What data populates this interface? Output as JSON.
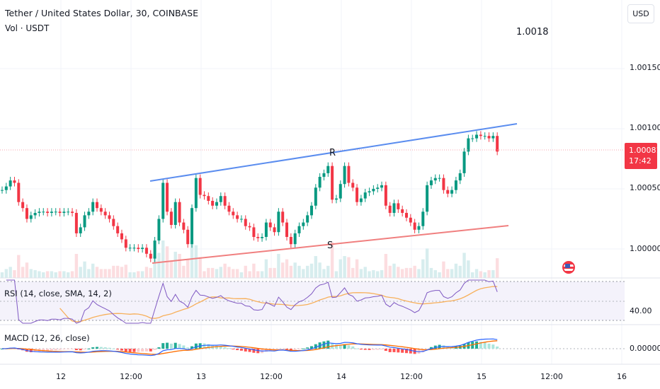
{
  "header": {
    "symbol_title": "Tether / United States Dollar, 30, COINBASE",
    "volume_legend": "Vol · USDT",
    "currency_button": "USD",
    "floating_value": "1.0018"
  },
  "price_axis": {
    "labels": [
      "1.00150",
      "1.00100",
      "1.00050",
      "1.00000"
    ],
    "current_price": "1.00081",
    "countdown": "17:42"
  },
  "indicators": {
    "rsi_legend": "RSI (14, close, SMA, 14, 2)",
    "rsi_axis_label": "40.00",
    "macd_legend": "MACD (12, 26, close)",
    "macd_axis_label": "0.00000"
  },
  "drawings": {
    "resistance_label": "R",
    "support_label": "S",
    "resistance_color": "#5b8def",
    "support_color": "#f07f7f"
  },
  "time_axis": {
    "labels": [
      "12",
      "12:00",
      "13",
      "12:00",
      "14",
      "12:00",
      "15",
      "12:00",
      "16"
    ]
  },
  "colors": {
    "up": "#089981",
    "down": "#f23645",
    "rsi": "#7e57c2",
    "rsi_sma": "#f7b05b",
    "macd": "#2962ff",
    "signal": "#ff6d00"
  },
  "chart_data": {
    "type": "candlestick",
    "title": "Tether / United States Dollar, 30, COINBASE",
    "interval": "30",
    "ylim": [
      0.9999,
      1.0019
    ],
    "y_ticks": [
      1.0,
      1.0005,
      1.001,
      1.0015
    ],
    "x_ticks": [
      "12",
      "12:00",
      "13",
      "12:00",
      "14",
      "12:00",
      "15",
      "12:00",
      "16"
    ],
    "grid": true,
    "closes": [
      1.00049,
      1.00052,
      1.00057,
      1.00055,
      1.00039,
      1.00034,
      1.00025,
      1.00028,
      1.0003,
      1.00031,
      1.00031,
      1.0003,
      1.00031,
      1.00031,
      1.0003,
      1.00031,
      1.00031,
      1.0003,
      1.00013,
      1.00018,
      1.00028,
      1.00031,
      1.00039,
      1.00034,
      1.00031,
      1.00028,
      1.00025,
      1.00019,
      1.00013,
      1.00008,
      1.00001,
      1.00001,
      1.00001,
      1.0,
      1.00001,
      0.99996,
      0.99992,
      1.00007,
      1.00025,
      1.00055,
      1.00031,
      1.0002,
      1.00039,
      1.00022,
      1.00016,
      1.00004,
      1.00034,
      1.00059,
      1.00045,
      1.00044,
      1.0004,
      1.00036,
      1.00039,
      1.00044,
      1.00036,
      1.00031,
      1.00028,
      1.00025,
      1.00025,
      1.00019,
      1.00018,
      1.0001,
      1.00009,
      1.0001,
      1.00022,
      1.00018,
      1.00014,
      1.00031,
      1.00022,
      1.0001,
      1.00004,
      1.00013,
      1.00019,
      1.00022,
      1.00028,
      1.00036,
      1.00051,
      1.0006,
      1.00063,
      1.00069,
      1.00041,
      1.00042,
      1.00054,
      1.00069,
      1.00055,
      1.00051,
      1.00039,
      1.00042,
      1.00047,
      1.00048,
      1.0005,
      1.00051,
      1.00053,
      1.00036,
      1.0003,
      1.00038,
      1.00033,
      1.0003,
      1.00026,
      1.00022,
      1.00016,
      1.00019,
      1.00031,
      1.00053,
      1.00057,
      1.00059,
      1.00059,
      1.00049,
      1.00046,
      1.00049,
      1.00057,
      1.00063,
      1.00081,
      1.00092,
      1.00092,
      1.00095,
      1.00094,
      1.00094,
      1.00092,
      1.00094,
      1.00081
    ],
    "current_price": 1.00081,
    "resistance_line": {
      "start": 1.00057,
      "end": 1.00105
    },
    "support_line": {
      "start": 0.99989,
      "end": 1.00019
    }
  }
}
